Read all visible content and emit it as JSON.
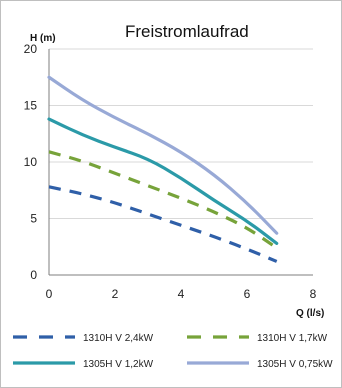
{
  "chart_data": {
    "type": "line",
    "title": "Freistromlaufrad",
    "ylabel": "H (m)",
    "xlabel": "Q (l/s)",
    "xlim": [
      0,
      8
    ],
    "ylim": [
      0,
      20
    ],
    "xticks": [
      "0",
      "2",
      "4",
      "6",
      "8"
    ],
    "yticks": [
      "0",
      "5",
      "10",
      "15",
      "20"
    ],
    "grid": "horizontal",
    "legend_position": "bottom",
    "series": [
      {
        "name": "1310H V 2,4kW",
        "color": "#2f5fa8",
        "style": "dashed",
        "x": [
          0,
          1,
          2,
          3,
          4,
          5,
          6,
          6.9
        ],
        "y": [
          7.8,
          7.2,
          6.4,
          5.4,
          4.4,
          3.4,
          2.3,
          1.2
        ]
      },
      {
        "name": "1310H V 1,7kW",
        "color": "#77a33a",
        "style": "dashed",
        "x": [
          0,
          1,
          2,
          3,
          4,
          5,
          6,
          6.9
        ],
        "y": [
          10.9,
          10.1,
          9.0,
          7.9,
          6.8,
          5.6,
          4.2,
          2.4
        ]
      },
      {
        "name": "1305H V 1,2kW",
        "color": "#2b9aa8",
        "style": "solid",
        "x": [
          0,
          1,
          2,
          3,
          4,
          5,
          6,
          6.9
        ],
        "y": [
          13.8,
          12.4,
          11.3,
          10.3,
          8.6,
          6.6,
          4.8,
          2.8
        ]
      },
      {
        "name": "1305H V 0,75kW",
        "color": "#98a9d6",
        "style": "solid",
        "x": [
          0,
          1,
          2,
          3,
          4,
          5,
          6,
          6.9
        ],
        "y": [
          17.5,
          15.5,
          13.9,
          12.5,
          10.9,
          8.9,
          6.4,
          3.7
        ]
      }
    ]
  }
}
